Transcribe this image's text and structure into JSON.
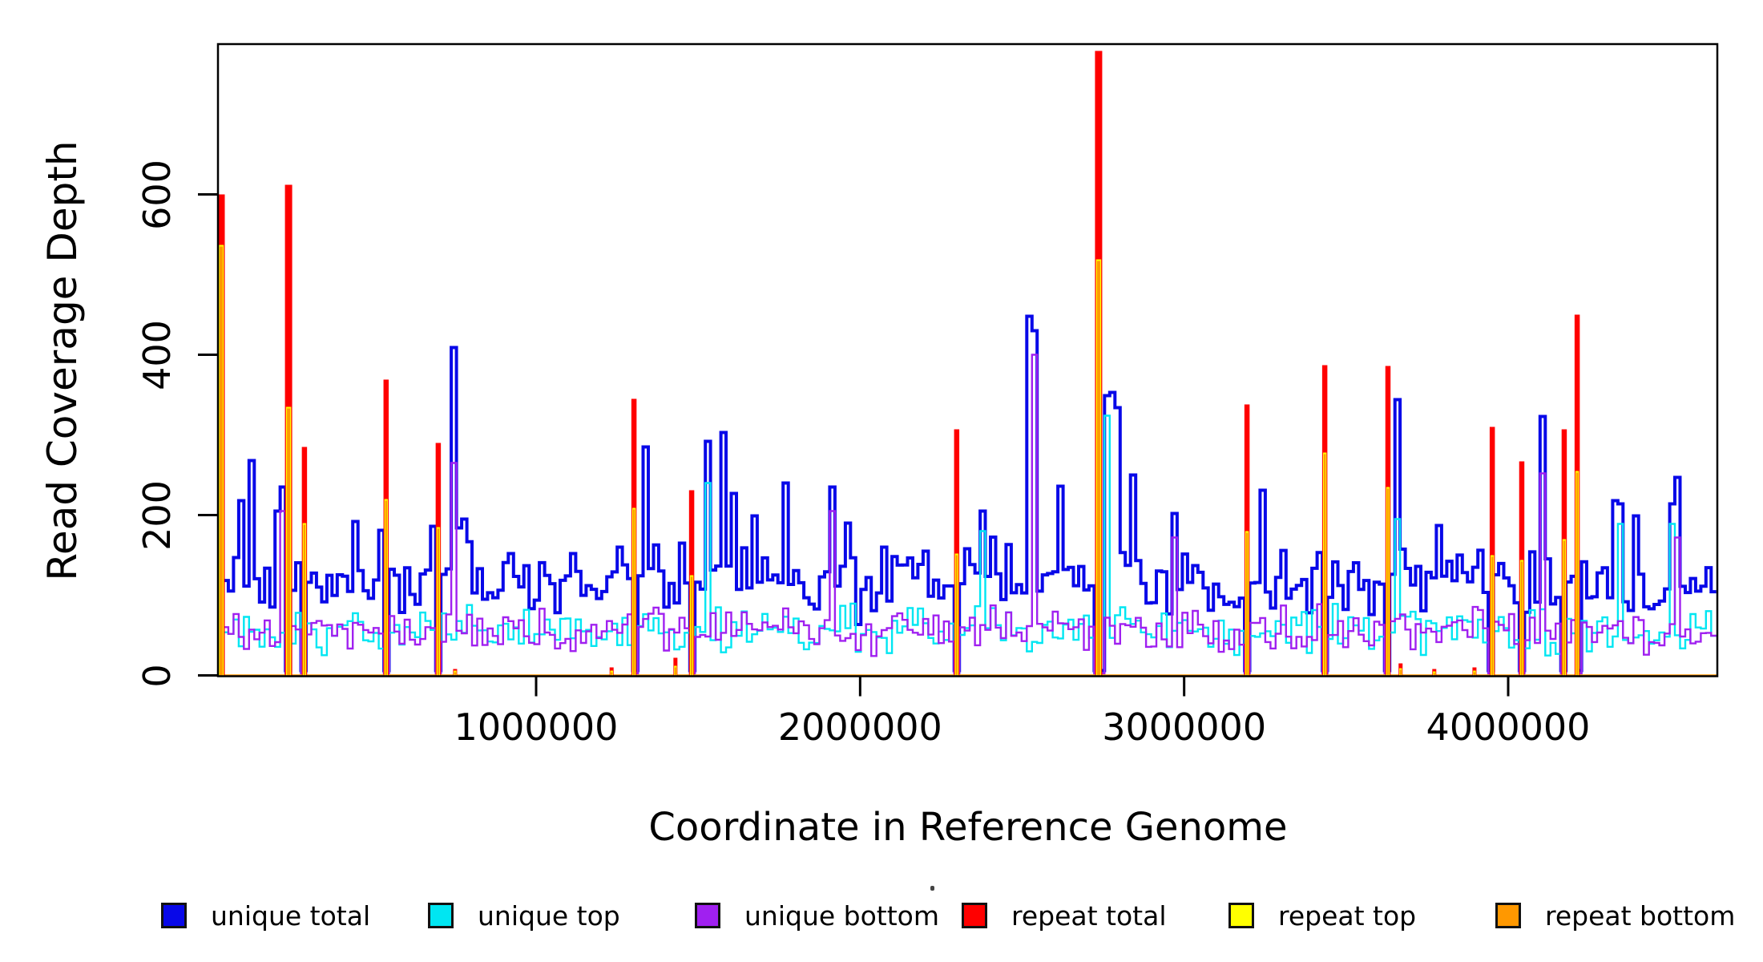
{
  "chart_data": {
    "type": "line",
    "subtype": "step-coverage-plot",
    "title": "",
    "xlabel": "Coordinate in Reference Genome",
    "ylabel": "Read Coverage Depth",
    "x_ticks": [
      1000000,
      2000000,
      3000000,
      4000000
    ],
    "x_tick_labels": [
      "1000000",
      "2000000",
      "3000000",
      "4000000"
    ],
    "y_ticks": [
      0,
      200,
      400,
      600
    ],
    "y_tick_labels": [
      "0",
      "200",
      "400",
      "600"
    ],
    "xlim": [
      18000,
      4645000
    ],
    "ylim": [
      0,
      788
    ],
    "grid": false,
    "legend_position": "bottom",
    "bin_size_bp": 16000,
    "noise_seed": 1337,
    "series": [
      {
        "name": "unique total",
        "color": "#0808e8",
        "style": "thick-step-line",
        "baseline_mean": 114,
        "baseline_range": [
          50,
          190
        ]
      },
      {
        "name": "unique top",
        "color": "#00e6f2",
        "style": "step-line",
        "baseline_mean": 57,
        "baseline_range": [
          22,
          92
        ]
      },
      {
        "name": "unique bottom",
        "color": "#a020f0",
        "style": "step-line",
        "baseline_mean": 57,
        "baseline_range": [
          22,
          92
        ]
      },
      {
        "name": "repeat total",
        "color": "#ff0000",
        "style": "vertical-spikes",
        "baseline": 0
      },
      {
        "name": "repeat top",
        "color": "#ffff00",
        "style": "vertical-spikes",
        "baseline": 0
      },
      {
        "name": "repeat bottom",
        "color": "#ff9800",
        "style": "vertical-spikes-and-zero-line",
        "baseline": 0
      }
    ],
    "repeat_spikes": [
      {
        "bp": 28000,
        "total": 600,
        "bottom": 537
      },
      {
        "bp": 236000,
        "total": 612,
        "bottom": 335
      },
      {
        "bp": 285000,
        "total": 285,
        "bottom": 190
      },
      {
        "bp": 537000,
        "total": 369,
        "bottom": 220
      },
      {
        "bp": 698000,
        "total": 290,
        "bottom": 185
      },
      {
        "bp": 1302000,
        "total": 345,
        "bottom": 209
      },
      {
        "bp": 1480000,
        "total": 231,
        "bottom": 125
      },
      {
        "bp": 2298000,
        "total": 307,
        "bottom": 152
      },
      {
        "bp": 2736000,
        "total": 779,
        "bottom": 519
      },
      {
        "bp": 3194000,
        "total": 338,
        "bottom": 180
      },
      {
        "bp": 3434000,
        "total": 387,
        "bottom": 278
      },
      {
        "bp": 3629000,
        "total": 386,
        "bottom": 235
      },
      {
        "bp": 3951000,
        "total": 310,
        "bottom": 150
      },
      {
        "bp": 4042000,
        "total": 267,
        "bottom": 144
      },
      {
        "bp": 4173000,
        "total": 307,
        "bottom": 170
      },
      {
        "bp": 4213000,
        "total": 450,
        "bottom": 255
      }
    ],
    "small_repeat_blips": [
      {
        "bp": 750000,
        "total": 8,
        "bottom": 6
      },
      {
        "bp": 1233000,
        "total": 10,
        "bottom": 6
      },
      {
        "bp": 1430000,
        "total": 22,
        "bottom": 12
      },
      {
        "bp": 3668000,
        "total": 15,
        "bottom": 9
      },
      {
        "bp": 3772000,
        "total": 8,
        "bottom": 5
      },
      {
        "bp": 3896000,
        "total": 10,
        "bottom": 6
      }
    ],
    "unique_total_peaks": [
      {
        "bp": 95000,
        "v": 218
      },
      {
        "bp": 129000,
        "v": 268
      },
      {
        "bp": 201000,
        "v": 205
      },
      {
        "bp": 448000,
        "v": 192
      },
      {
        "bp": 520000,
        "v": 181
      },
      {
        "bp": 676000,
        "v": 186
      },
      {
        "bp": 743000,
        "v": 409
      },
      {
        "bp": 780000,
        "v": 195
      },
      {
        "bp": 921000,
        "v": 152
      },
      {
        "bp": 1109000,
        "v": 152
      },
      {
        "bp": 1250000,
        "v": 160
      },
      {
        "bp": 1331000,
        "v": 285
      },
      {
        "bp": 1453000,
        "v": 165
      },
      {
        "bp": 1529000,
        "v": 292
      },
      {
        "bp": 1576000,
        "v": 303
      },
      {
        "bp": 1608000,
        "v": 227
      },
      {
        "bp": 1670000,
        "v": 199
      },
      {
        "bp": 1764000,
        "v": 240
      },
      {
        "bp": 1918000,
        "v": 233
      },
      {
        "bp": 1955000,
        "v": 190
      },
      {
        "bp": 2078000,
        "v": 160
      },
      {
        "bp": 2197000,
        "v": 155
      },
      {
        "bp": 2326000,
        "v": 158
      },
      {
        "bp": 2519000,
        "v": 448
      },
      {
        "bp": 2615000,
        "v": 236
      },
      {
        "bp": 2771000,
        "v": 353
      },
      {
        "bp": 2788000,
        "v": 334
      },
      {
        "bp": 2845000,
        "v": 250
      },
      {
        "bp": 3246000,
        "v": 231
      },
      {
        "bp": 3426000,
        "v": 210
      },
      {
        "bp": 3656000,
        "v": 344
      },
      {
        "bp": 3785000,
        "v": 187
      },
      {
        "bp": 4111000,
        "v": 323
      },
      {
        "bp": 4334000,
        "v": 218
      },
      {
        "bp": 4386000,
        "v": 199
      },
      {
        "bp": 4514000,
        "v": 247
      }
    ],
    "unique_top_peaks": [
      {
        "bp": 1529000,
        "v": 240
      },
      {
        "bp": 2370000,
        "v": 180
      },
      {
        "bp": 2768000,
        "v": 324
      },
      {
        "bp": 3656000,
        "v": 195
      },
      {
        "bp": 4341000,
        "v": 189
      },
      {
        "bp": 4506000,
        "v": 189
      }
    ],
    "unique_bottom_peaks": [
      {
        "bp": 214000,
        "v": 205
      },
      {
        "bp": 748000,
        "v": 265
      },
      {
        "bp": 1918000,
        "v": 205
      },
      {
        "bp": 2535000,
        "v": 400
      },
      {
        "bp": 2970000,
        "v": 172
      },
      {
        "bp": 4111000,
        "v": 252
      },
      {
        "bp": 4514000,
        "v": 172
      }
    ],
    "unique_dip_value_at_repeats": 5
  },
  "axes": {
    "y_title": "Read Coverage Depth",
    "x_title": "Coordinate in Reference Genome"
  },
  "legend": {
    "items": [
      {
        "label": "unique total",
        "color": "#0808e8"
      },
      {
        "label": "unique top",
        "color": "#00e6f2"
      },
      {
        "label": "unique bottom",
        "color": "#a020f0"
      },
      {
        "label": "repeat total",
        "color": "#ff0000"
      },
      {
        "label": "repeat top",
        "color": "#ffff00"
      },
      {
        "label": "repeat bottom",
        "color": "#ff9800"
      }
    ]
  },
  "colors": {
    "frame": "#000000",
    "background": "#ffffff",
    "zero_line": "#ff9800"
  }
}
